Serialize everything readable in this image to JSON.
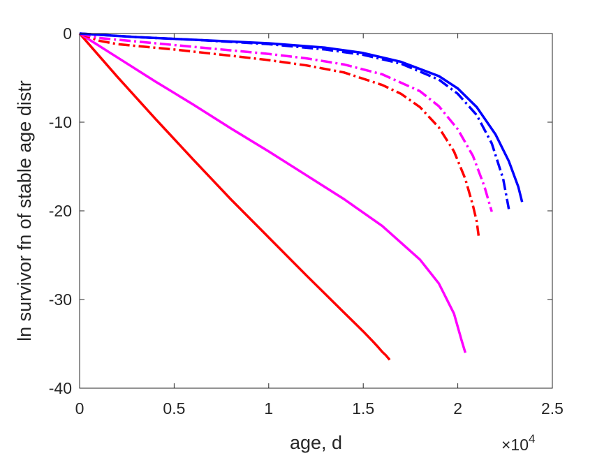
{
  "chart_data": {
    "type": "line",
    "title": "",
    "xlabel": "age, d",
    "ylabel": "ln survivor fn of stable age distr",
    "x_multiplier_base": "×10",
    "x_multiplier_exp": "4",
    "xlim": [
      0,
      2.5
    ],
    "ylim": [
      -40,
      0
    ],
    "xticks": [
      0,
      0.5,
      1,
      1.5,
      2,
      2.5
    ],
    "xtick_labels": [
      "0",
      "0.5",
      "1",
      "1.5",
      "2",
      "2.5"
    ],
    "yticks": [
      0,
      -10,
      -20,
      -30,
      -40
    ],
    "ytick_labels": [
      "0",
      "-10",
      "-20",
      "-30",
      "-40"
    ],
    "grid": false,
    "legend": "none",
    "series": [
      {
        "color": "#ff0000",
        "style": "solid",
        "x": [
          0,
          0.2,
          0.4,
          0.6,
          0.8,
          1.0,
          1.2,
          1.4,
          1.5,
          1.55,
          1.58,
          1.6,
          1.62,
          1.64
        ],
        "y": [
          0,
          -4.9,
          -9.6,
          -14.2,
          -18.7,
          -23.0,
          -27.3,
          -31.5,
          -33.6,
          -34.7,
          -35.4,
          -35.9,
          -36.3,
          -36.8
        ]
      },
      {
        "color": "#ff00ff",
        "style": "solid",
        "x": [
          0,
          0.2,
          0.4,
          0.6,
          0.8,
          1.0,
          1.2,
          1.4,
          1.6,
          1.8,
          1.9,
          1.98,
          2.02,
          2.04
        ],
        "y": [
          0,
          -2.7,
          -5.4,
          -8.0,
          -10.7,
          -13.3,
          -16.0,
          -18.7,
          -21.7,
          -25.5,
          -28.2,
          -31.6,
          -34.6,
          -36.0
        ]
      },
      {
        "color": "#ff0000",
        "style": "dashdot",
        "x": [
          0,
          0.1,
          0.2,
          0.5,
          0.8,
          1.0,
          1.2,
          1.4,
          1.6,
          1.7,
          1.8,
          1.9,
          1.98,
          2.04,
          2.08,
          2.1,
          2.11
        ],
        "y": [
          0,
          -0.8,
          -1.2,
          -1.8,
          -2.5,
          -3.0,
          -3.6,
          -4.4,
          -5.8,
          -6.8,
          -8.3,
          -10.6,
          -13.3,
          -16.4,
          -19.4,
          -21.2,
          -22.8
        ]
      },
      {
        "color": "#ff00ff",
        "style": "dashdot",
        "x": [
          0,
          0.1,
          0.3,
          0.5,
          0.8,
          1.0,
          1.2,
          1.4,
          1.6,
          1.8,
          1.9,
          2.0,
          2.08,
          2.14,
          2.18
        ],
        "y": [
          0,
          -0.5,
          -0.9,
          -1.3,
          -1.9,
          -2.3,
          -2.8,
          -3.5,
          -4.6,
          -6.5,
          -8.2,
          -10.8,
          -13.8,
          -17.2,
          -20.1
        ]
      },
      {
        "color": "#0000ff",
        "style": "dashdot",
        "x": [
          0,
          0.3,
          0.6,
          1.0,
          1.3,
          1.5,
          1.7,
          1.9,
          2.0,
          2.1,
          2.18,
          2.24,
          2.27
        ],
        "y": [
          0,
          -0.4,
          -0.7,
          -1.2,
          -1.8,
          -2.4,
          -3.4,
          -5.2,
          -6.8,
          -9.2,
          -12.4,
          -16.4,
          -19.8
        ]
      },
      {
        "color": "#0000ff",
        "style": "solid",
        "x": [
          0,
          0.3,
          0.6,
          1.0,
          1.3,
          1.5,
          1.7,
          1.9,
          2.0,
          2.1,
          2.2,
          2.27,
          2.32,
          2.34
        ],
        "y": [
          0,
          -0.4,
          -0.7,
          -1.1,
          -1.6,
          -2.2,
          -3.2,
          -4.8,
          -6.2,
          -8.3,
          -11.4,
          -14.4,
          -17.3,
          -19.0
        ]
      }
    ]
  }
}
